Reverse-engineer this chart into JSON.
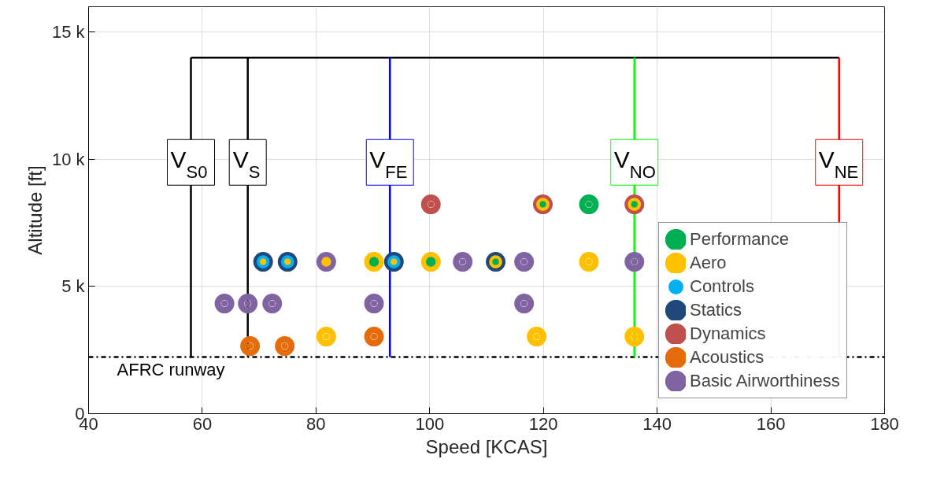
{
  "chart_data": {
    "type": "scatter",
    "xlabel": "Speed [KCAS]",
    "ylabel": "Altitude [ft]",
    "xlim": [
      40,
      180
    ],
    "ylim": [
      0,
      16000
    ],
    "xticks": [
      40,
      60,
      80,
      100,
      120,
      140,
      160,
      180
    ],
    "yticks": [
      0,
      {
        "value": 5000,
        "label": "5 k"
      },
      {
        "value": 10000,
        "label": "10 k"
      },
      {
        "value": 15000,
        "label": "15 k"
      }
    ],
    "grid": true,
    "legend": "bottom right",
    "marker": "circle",
    "ref_lines": [
      {
        "axis": "y",
        "value": 14000,
        "label": null,
        "color": "#000000",
        "line_style": "solid"
      },
      {
        "axis": "y",
        "value": 2230,
        "label": "AFRC runway",
        "color": "#000000",
        "line_style": "dashdot"
      },
      {
        "axis": "x",
        "value": 58,
        "label": "V$_{S0}$",
        "color": "#000000",
        "line_style": "solid"
      },
      {
        "axis": "x",
        "value": 68,
        "label": "V$_{S}$",
        "color": "#000000",
        "line_style": "solid"
      },
      {
        "axis": "x",
        "value": 93,
        "label": "V$_{FE}$",
        "color": "#0000ff",
        "line_style": "solid"
      },
      {
        "axis": "x",
        "value": 136,
        "label": "V$_{NO}$",
        "color": "#00ff00",
        "line_style": "solid"
      },
      {
        "axis": "x",
        "value": 172,
        "label": "V$_{NE}$",
        "color": "#ff0000",
        "line_style": "solid"
      }
    ],
    "series": [
      {
        "name": "Performance",
        "color": "#00b050",
        "x": [
          119.9,
          128,
          136,
          90.2,
          100.2,
          111.6
        ],
        "values": [
          8230,
          8230,
          8230,
          5970,
          5970,
          5970
        ]
      },
      {
        "name": "Aero",
        "color": "#ffc000",
        "x": [
          119.9,
          136,
          70.7,
          75,
          81.8,
          90.2,
          93.7,
          100.2,
          111.6,
          128,
          81.8,
          118.8,
          136
        ],
        "values": [
          8230,
          8230,
          5970,
          5970,
          5970,
          5970,
          5970,
          5970,
          5970,
          5970,
          3030,
          3030,
          3030
        ]
      },
      {
        "name": "Controls",
        "color": "#00b0f0",
        "x": [
          70.7,
          75,
          93.7
        ],
        "values": [
          5970,
          5970,
          5970
        ]
      },
      {
        "name": "Statics",
        "color": "#1f497d",
        "x": [
          70.7,
          75,
          93.7,
          111.6
        ],
        "values": [
          5970,
          5970,
          5970,
          5970
        ]
      },
      {
        "name": "Dynamics",
        "color": "#c0504d",
        "x": [
          100.2,
          119.9,
          136
        ],
        "values": [
          8230,
          8230,
          8230
        ]
      },
      {
        "name": "Acoustics",
        "color": "#e46c0a",
        "x": [
          90.2,
          68.4,
          74.5
        ],
        "values": [
          3030,
          2660,
          2660
        ]
      },
      {
        "name": "Basic Airworthiness",
        "color": "#8064a2",
        "x": [
          81.8,
          105.8,
          116.6,
          136,
          63.9,
          68,
          72.3,
          90.2,
          116.6
        ],
        "values": [
          5970,
          5970,
          5970,
          5970,
          4330,
          4330,
          4330,
          4330,
          4330
        ]
      }
    ]
  }
}
